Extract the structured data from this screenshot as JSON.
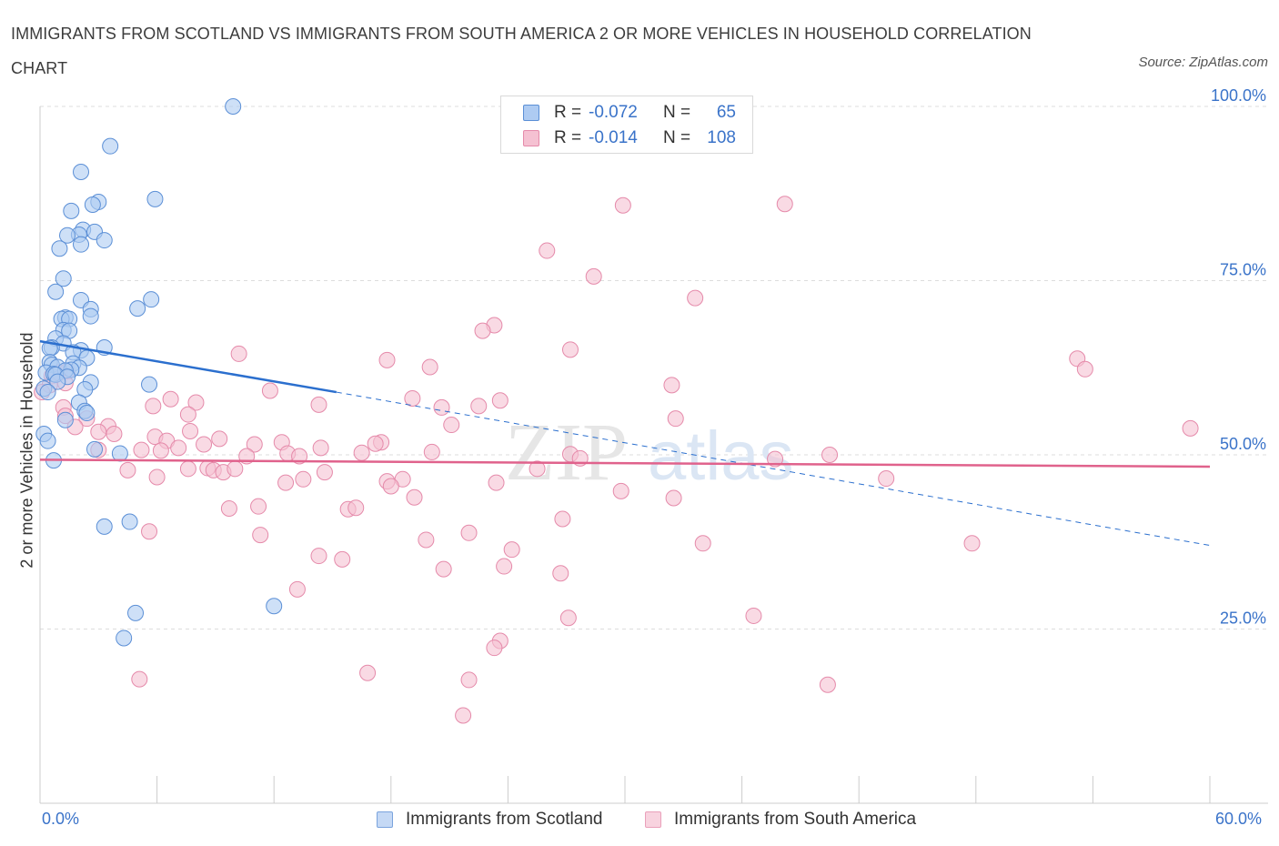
{
  "header": {
    "title": "IMMIGRANTS FROM SCOTLAND VS IMMIGRANTS FROM SOUTH AMERICA 2 OR MORE VEHICLES IN HOUSEHOLD CORRELATION CHART",
    "source": "Source: ZipAtlas.com"
  },
  "legend": {
    "rows": [
      {
        "r_label": "R =",
        "r_value": "-0.072",
        "n_label": "N =",
        "n_value": "65"
      },
      {
        "r_label": "R =",
        "r_value": "-0.014",
        "n_label": "N =",
        "n_value": "108"
      }
    ]
  },
  "watermark": {
    "zip": "ZIP",
    "atlas": "atlas"
  },
  "colors": {
    "blue_fill": "#aecbf2",
    "blue_stroke": "#5b8fd6",
    "blue_line": "#2b6fce",
    "pink_fill": "#f5c1d2",
    "pink_stroke": "#e58aaa",
    "pink_line": "#e0628c",
    "tick_text": "#3a73c9",
    "grid": "#dddddd"
  },
  "chart_data": {
    "type": "scatter",
    "title": "IMMIGRANTS FROM SCOTLAND VS IMMIGRANTS FROM SOUTH AMERICA 2 OR MORE VEHICLES IN HOUSEHOLD CORRELATION CHART",
    "xlabel": "",
    "ylabel": "2 or more Vehicles in Household",
    "xlim": [
      0,
      60
    ],
    "ylim": [
      0,
      100
    ],
    "x_tick_labels": [
      "0.0%",
      "60.0%"
    ],
    "y_ticks": [
      25,
      50,
      75,
      100
    ],
    "y_tick_labels": [
      "25.0%",
      "50.0%",
      "75.0%",
      "100.0%"
    ],
    "grid": true,
    "series": [
      {
        "name": "Immigrants from Scotland",
        "color": "blue",
        "R": -0.072,
        "N": 65,
        "trend": {
          "x0": 0,
          "y0": 66.3,
          "x1": 15.2,
          "y1": 59.0,
          "dash_to_x": 60,
          "dash_to_y": 37.0
        },
        "points": [
          [
            9.9,
            100
          ],
          [
            3.6,
            94.3
          ],
          [
            2.1,
            90.6
          ],
          [
            5.9,
            86.7
          ],
          [
            3.0,
            86.3
          ],
          [
            2.7,
            85.9
          ],
          [
            1.6,
            85.0
          ],
          [
            2.2,
            82.3
          ],
          [
            2.8,
            82.0
          ],
          [
            2.0,
            81.6
          ],
          [
            1.4,
            81.5
          ],
          [
            3.3,
            80.8
          ],
          [
            2.1,
            80.2
          ],
          [
            1.0,
            79.6
          ],
          [
            1.2,
            75.3
          ],
          [
            0.8,
            73.4
          ],
          [
            5.7,
            72.3
          ],
          [
            2.1,
            72.2
          ],
          [
            5.0,
            71.0
          ],
          [
            2.6,
            70.9
          ],
          [
            2.6,
            69.9
          ],
          [
            1.3,
            69.7
          ],
          [
            1.1,
            69.5
          ],
          [
            1.5,
            69.5
          ],
          [
            1.2,
            67.9
          ],
          [
            1.5,
            67.8
          ],
          [
            0.8,
            66.7
          ],
          [
            1.2,
            66.0
          ],
          [
            0.6,
            65.4
          ],
          [
            0.5,
            65.3
          ],
          [
            3.3,
            65.4
          ],
          [
            2.1,
            65.0
          ],
          [
            1.7,
            64.7
          ],
          [
            2.4,
            63.9
          ],
          [
            0.5,
            63.3
          ],
          [
            1.7,
            63.1
          ],
          [
            0.6,
            62.9
          ],
          [
            0.9,
            62.6
          ],
          [
            2.0,
            62.5
          ],
          [
            1.6,
            62.2
          ],
          [
            1.3,
            62.1
          ],
          [
            0.3,
            61.8
          ],
          [
            0.7,
            61.6
          ],
          [
            0.8,
            61.5
          ],
          [
            1.4,
            61.2
          ],
          [
            2.6,
            60.4
          ],
          [
            5.6,
            60.1
          ],
          [
            0.9,
            60.5
          ],
          [
            2.3,
            59.4
          ],
          [
            0.2,
            59.5
          ],
          [
            0.4,
            59.0
          ],
          [
            2.0,
            57.5
          ],
          [
            2.3,
            56.3
          ],
          [
            2.4,
            56.0
          ],
          [
            1.3,
            55.0
          ],
          [
            0.2,
            53.0
          ],
          [
            0.4,
            52.0
          ],
          [
            0.7,
            49.2
          ],
          [
            2.8,
            50.8
          ],
          [
            4.1,
            50.2
          ],
          [
            3.3,
            39.7
          ],
          [
            4.6,
            40.4
          ],
          [
            4.9,
            27.3
          ],
          [
            12.0,
            28.3
          ],
          [
            4.3,
            23.7
          ]
        ]
      },
      {
        "name": "Immigrants from South America",
        "color": "pink",
        "R": -0.014,
        "N": 108,
        "trend": {
          "x0": 0,
          "y0": 49.3,
          "x1": 60,
          "y1": 48.3
        },
        "points": [
          [
            29.9,
            85.8
          ],
          [
            38.2,
            86.0
          ],
          [
            26.0,
            79.3
          ],
          [
            28.4,
            75.6
          ],
          [
            33.6,
            72.5
          ],
          [
            23.3,
            68.6
          ],
          [
            22.7,
            67.8
          ],
          [
            27.2,
            65.1
          ],
          [
            10.2,
            64.5
          ],
          [
            17.8,
            63.6
          ],
          [
            20.0,
            62.6
          ],
          [
            53.2,
            63.8
          ],
          [
            53.6,
            62.3
          ],
          [
            1.0,
            61.8
          ],
          [
            1.4,
            62.0
          ],
          [
            0.6,
            61.3
          ],
          [
            1.3,
            60.3
          ],
          [
            32.4,
            60.0
          ],
          [
            11.8,
            59.2
          ],
          [
            0.5,
            60.0
          ],
          [
            0.1,
            59.0
          ],
          [
            1.2,
            56.8
          ],
          [
            6.7,
            58.0
          ],
          [
            8.0,
            57.5
          ],
          [
            5.8,
            57.0
          ],
          [
            14.3,
            57.2
          ],
          [
            19.1,
            58.1
          ],
          [
            20.6,
            56.8
          ],
          [
            22.5,
            57.0
          ],
          [
            23.6,
            57.8
          ],
          [
            7.6,
            55.8
          ],
          [
            1.3,
            55.6
          ],
          [
            2.4,
            55.2
          ],
          [
            32.6,
            55.2
          ],
          [
            21.1,
            54.3
          ],
          [
            3.5,
            54.1
          ],
          [
            1.8,
            54.0
          ],
          [
            3.0,
            53.3
          ],
          [
            3.8,
            53.0
          ],
          [
            7.7,
            53.4
          ],
          [
            5.9,
            52.6
          ],
          [
            6.5,
            52.0
          ],
          [
            9.2,
            52.3
          ],
          [
            8.4,
            51.5
          ],
          [
            11.0,
            51.5
          ],
          [
            12.4,
            51.8
          ],
          [
            17.5,
            51.8
          ],
          [
            17.2,
            51.6
          ],
          [
            7.1,
            51.0
          ],
          [
            14.4,
            51.0
          ],
          [
            5.2,
            50.7
          ],
          [
            3.0,
            50.7
          ],
          [
            6.2,
            50.6
          ],
          [
            12.7,
            50.2
          ],
          [
            16.5,
            50.3
          ],
          [
            20.1,
            50.4
          ],
          [
            27.2,
            50.1
          ],
          [
            37.7,
            49.4
          ],
          [
            40.5,
            50.0
          ],
          [
            10.6,
            49.8
          ],
          [
            13.3,
            49.8
          ],
          [
            27.7,
            49.5
          ],
          [
            4.5,
            47.8
          ],
          [
            8.6,
            48.1
          ],
          [
            14.6,
            47.5
          ],
          [
            25.5,
            48.0
          ],
          [
            7.6,
            48.0
          ],
          [
            8.9,
            47.8
          ],
          [
            9.4,
            47.5
          ],
          [
            6.0,
            46.8
          ],
          [
            10.0,
            48.0
          ],
          [
            12.6,
            46.0
          ],
          [
            13.5,
            46.5
          ],
          [
            17.8,
            46.2
          ],
          [
            18.6,
            46.5
          ],
          [
            18.0,
            45.5
          ],
          [
            23.4,
            46.0
          ],
          [
            43.4,
            46.6
          ],
          [
            29.8,
            44.8
          ],
          [
            32.5,
            43.8
          ],
          [
            19.2,
            43.9
          ],
          [
            11.2,
            42.6
          ],
          [
            9.7,
            42.3
          ],
          [
            15.8,
            42.2
          ],
          [
            16.2,
            42.4
          ],
          [
            26.8,
            40.8
          ],
          [
            5.6,
            39.0
          ],
          [
            22.0,
            38.8
          ],
          [
            11.3,
            38.5
          ],
          [
            19.8,
            37.8
          ],
          [
            34.0,
            37.3
          ],
          [
            47.8,
            37.3
          ],
          [
            14.3,
            35.5
          ],
          [
            15.5,
            35.0
          ],
          [
            24.2,
            36.4
          ],
          [
            23.8,
            34.0
          ],
          [
            20.7,
            33.6
          ],
          [
            26.7,
            33.0
          ],
          [
            13.2,
            30.7
          ],
          [
            36.6,
            26.9
          ],
          [
            27.1,
            26.6
          ],
          [
            23.6,
            23.3
          ],
          [
            23.3,
            22.3
          ],
          [
            16.8,
            18.7
          ],
          [
            5.1,
            17.8
          ],
          [
            22.0,
            17.7
          ],
          [
            40.4,
            17.0
          ],
          [
            21.7,
            12.6
          ],
          [
            59.0,
            53.8
          ]
        ]
      }
    ]
  },
  "bottom_legend": {
    "scotland_label": "Immigrants from Scotland",
    "south_america_label": "Immigrants from South America"
  }
}
